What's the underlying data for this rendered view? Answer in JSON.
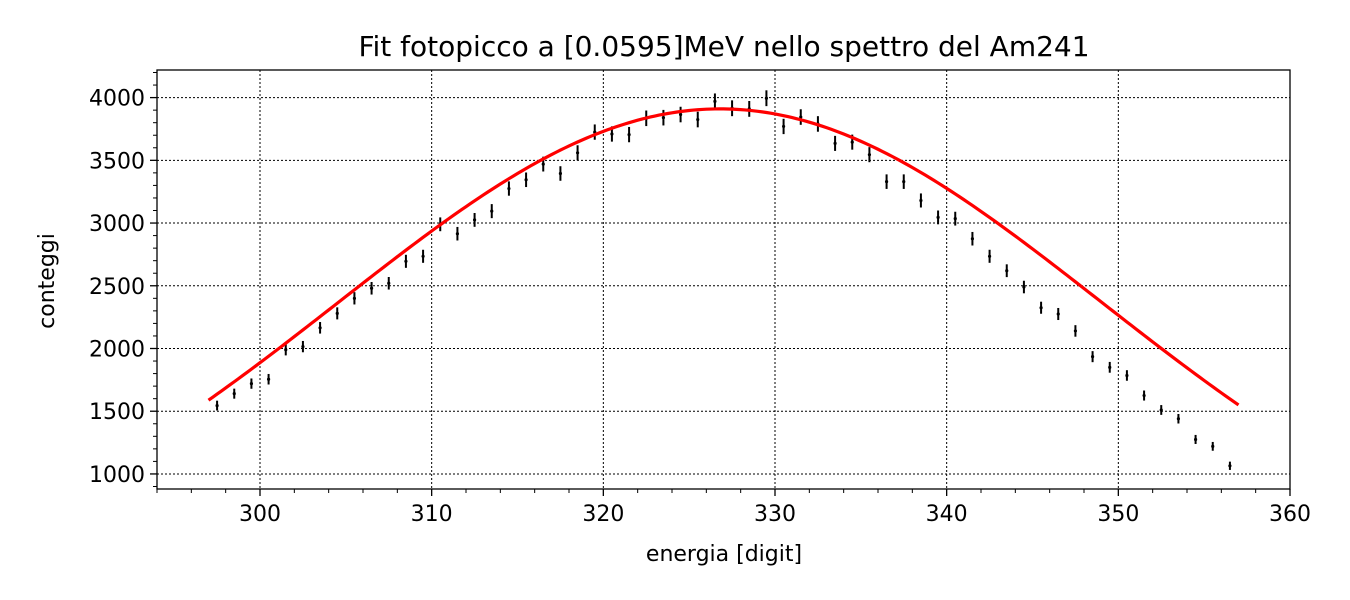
{
  "chart_data": {
    "type": "scatter",
    "title": "Fit fotopicco a [0.0595]MeV nello spettro del Am241",
    "xlabel": "energia [digit]",
    "ylabel": "conteggi",
    "xlim": [
      294,
      360
    ],
    "ylim": [
      880,
      4220
    ],
    "xticks": [
      300,
      310,
      320,
      330,
      340,
      350,
      360
    ],
    "xtick_labels": [
      "300",
      "310",
      "320",
      "330",
      "340",
      "350",
      "360"
    ],
    "yticks": [
      1000,
      1500,
      2000,
      2500,
      3000,
      3500,
      4000
    ],
    "ytick_labels": [
      "1000",
      "1500",
      "2000",
      "2500",
      "3000",
      "3500",
      "4000"
    ],
    "grid": true,
    "colors": {
      "data": "#000000",
      "fit": "#ff0000"
    },
    "series": [
      {
        "kind": "errorbar",
        "x": [
          297.5,
          298.5,
          299.5,
          300.5,
          301.5,
          302.5,
          303.5,
          304.5,
          305.5,
          306.5,
          307.5,
          308.5,
          309.5,
          310.5,
          311.5,
          312.5,
          313.5,
          314.5,
          315.5,
          316.5,
          317.5,
          318.5,
          319.5,
          320.5,
          321.5,
          322.5,
          323.5,
          324.5,
          325.5,
          326.5,
          327.5,
          328.5,
          329.5,
          330.5,
          331.5,
          332.5,
          333.5,
          334.5,
          335.5,
          336.5,
          337.5,
          338.5,
          339.5,
          340.5,
          341.5,
          342.5,
          343.5,
          344.5,
          345.5,
          346.5,
          347.5,
          348.5,
          349.5,
          350.5,
          351.5,
          352.5,
          353.5,
          354.5,
          355.5,
          356.5
        ],
        "y": [
          1545,
          1640,
          1720,
          1755,
          1990,
          2015,
          2165,
          2280,
          2400,
          2480,
          2520,
          2695,
          2735,
          2990,
          2915,
          3025,
          3095,
          3275,
          3345,
          3470,
          3395,
          3560,
          3725,
          3710,
          3705,
          3835,
          3840,
          3865,
          3825,
          3970,
          3915,
          3910,
          3995,
          3770,
          3845,
          3790,
          3635,
          3645,
          3545,
          3330,
          3330,
          3180,
          3045,
          3035,
          2875,
          2735,
          2620,
          2490,
          2325,
          2275,
          2140,
          1935,
          1850,
          1785,
          1625,
          1510,
          1440,
          1275,
          1220,
          1065
        ],
        "yerr": [
          39,
          40,
          41,
          42,
          45,
          45,
          46,
          48,
          49,
          50,
          50,
          52,
          52,
          55,
          54,
          55,
          56,
          57,
          58,
          59,
          58,
          60,
          61,
          61,
          61,
          62,
          62,
          62,
          62,
          63,
          63,
          63,
          63,
          61,
          62,
          62,
          60,
          60,
          60,
          58,
          58,
          56,
          55,
          55,
          54,
          52,
          51,
          50,
          48,
          48,
          46,
          44,
          43,
          42,
          40,
          39,
          38,
          36,
          35,
          33
        ]
      },
      {
        "kind": "line",
        "model": "gaussian",
        "amplitude": 3910,
        "mean": 326.8,
        "sigma": 22.2,
        "x_range": [
          297,
          357
        ]
      }
    ]
  }
}
